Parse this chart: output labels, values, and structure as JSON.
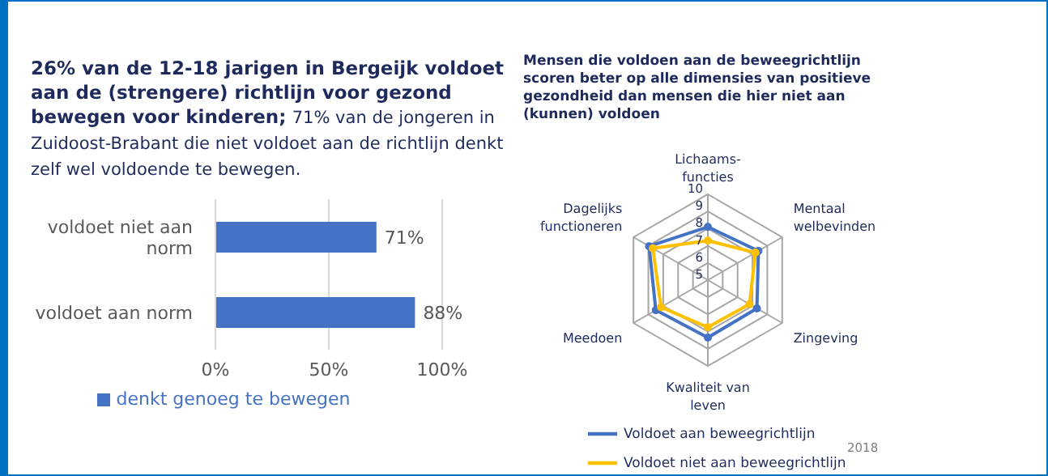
{
  "chart_data": [
    {
      "type": "bar",
      "orientation": "horizontal",
      "title": "26% van de 12-18 jarigen in Bergeijk voldoet aan de (strengere) richtlijn voor gezond bewegen voor kinderen;",
      "subtitle": "71% van de jongeren in Zuidoost-Brabant die niet voldoet aan de richtlijn denkt zelf wel voldoende te bewegen.",
      "categories": [
        "voldoet niet aan norm",
        "voldoet aan norm"
      ],
      "series": [
        {
          "name": "denkt genoeg te bewegen",
          "color": "#4472c4",
          "values": [
            71,
            88
          ]
        }
      ],
      "value_labels": [
        "71%",
        "88%"
      ],
      "xlim": [
        0,
        100
      ],
      "xticks": [
        {
          "value": 0,
          "label": "0%"
        },
        {
          "value": 50,
          "label": "50%"
        },
        {
          "value": 100,
          "label": "100%"
        }
      ],
      "grid": "x",
      "legend": "bottom"
    },
    {
      "type": "radar",
      "title": "Mensen die voldoen aan de beweegrichtlijn scoren beter op alle dimensies van positieve gezondheid dan mensen die hier niet aan (kunnen) voldoen",
      "categories": [
        "Lichaams-functies",
        "Mentaal welbevinden",
        "Zingeving",
        "Kwaliteit van leven",
        "Meedoen",
        "Dagelijks functioneren"
      ],
      "series": [
        {
          "name": "Voldoet aan beweegrichtlijn",
          "color": "#4472c4",
          "values": [
            8.1,
            8.4,
            8.3,
            8.35,
            8.5,
            8.95
          ]
        },
        {
          "name": "Voldoet niet aan beweegrichtlijn",
          "color": "#ffc000",
          "values": [
            7.3,
            8.2,
            7.8,
            7.75,
            8.15,
            8.7
          ]
        }
      ],
      "ylim": [
        5,
        10
      ],
      "yticks": [
        5,
        6,
        7,
        8,
        9,
        10
      ],
      "grid": true,
      "legend": "bottom",
      "marker": "circle",
      "annotations": [
        "2018"
      ]
    }
  ]
}
